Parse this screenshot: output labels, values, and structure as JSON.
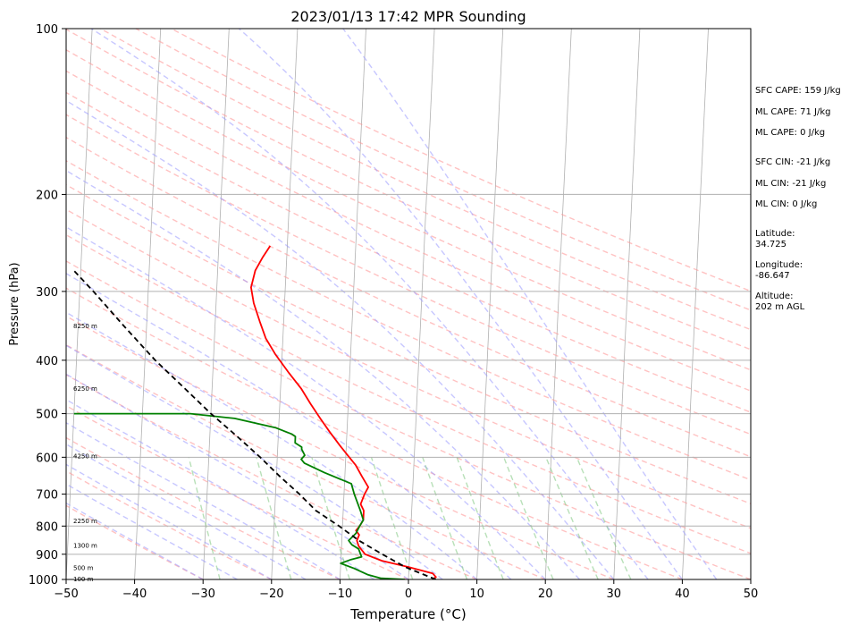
{
  "chart_data": {
    "type": "line",
    "title": "2023/01/13 17:42 MPR Sounding",
    "xlabel": "Temperature (°C)",
    "ylabel": "Pressure (hPa)",
    "xlim": [
      -50,
      50
    ],
    "ylim": [
      1000,
      100
    ],
    "y_scale": "log",
    "grid": "pressure-horizontal",
    "x_ticks": [
      -50,
      -40,
      -30,
      -20,
      -10,
      0,
      10,
      20,
      30,
      40,
      50
    ],
    "y_ticks": [
      100,
      200,
      300,
      400,
      500,
      600,
      700,
      800,
      900,
      1000
    ],
    "series": [
      {
        "color": "#ff0000",
        "points": [
          {
            "t": 3.5,
            "p": 1000
          },
          {
            "t": 4.0,
            "p": 990
          },
          {
            "t": 3.5,
            "p": 975
          },
          {
            "t": 0.0,
            "p": 950
          },
          {
            "t": -4.0,
            "p": 925
          },
          {
            "t": -6.5,
            "p": 900
          },
          {
            "t": -7.5,
            "p": 870
          },
          {
            "t": -7.8,
            "p": 850
          },
          {
            "t": -7.5,
            "p": 830
          },
          {
            "t": -8.0,
            "p": 815
          },
          {
            "t": -7.5,
            "p": 800
          },
          {
            "t": -7.0,
            "p": 780
          },
          {
            "t": -7.0,
            "p": 750
          },
          {
            "t": -7.5,
            "p": 730
          },
          {
            "t": -7.0,
            "p": 700
          },
          {
            "t": -6.5,
            "p": 680
          },
          {
            "t": -7.5,
            "p": 650
          },
          {
            "t": -8.5,
            "p": 620
          },
          {
            "t": -10.0,
            "p": 590
          },
          {
            "t": -11.0,
            "p": 570
          },
          {
            "t": -12.5,
            "p": 540
          },
          {
            "t": -14.0,
            "p": 510
          },
          {
            "t": -15.5,
            "p": 480
          },
          {
            "t": -17.0,
            "p": 450
          },
          {
            "t": -19.0,
            "p": 420
          },
          {
            "t": -21.0,
            "p": 390
          },
          {
            "t": -22.5,
            "p": 365
          },
          {
            "t": -23.5,
            "p": 340
          },
          {
            "t": -24.5,
            "p": 315
          },
          {
            "t": -25.0,
            "p": 295
          },
          {
            "t": -24.5,
            "p": 275
          },
          {
            "t": -23.5,
            "p": 260
          },
          {
            "t": -22.5,
            "p": 248
          }
        ]
      },
      {
        "color": "#008000",
        "points": [
          {
            "t": -0.5,
            "p": 1000
          },
          {
            "t": -4.0,
            "p": 995
          },
          {
            "t": -6.0,
            "p": 980
          },
          {
            "t": -8.0,
            "p": 955
          },
          {
            "t": -10.0,
            "p": 935
          },
          {
            "t": -8.5,
            "p": 920
          },
          {
            "t": -7.0,
            "p": 910
          },
          {
            "t": -7.5,
            "p": 880
          },
          {
            "t": -8.5,
            "p": 865
          },
          {
            "t": -9.0,
            "p": 850
          },
          {
            "t": -8.0,
            "p": 825
          },
          {
            "t": -7.5,
            "p": 800
          },
          {
            "t": -7.0,
            "p": 780
          },
          {
            "t": -7.5,
            "p": 750
          },
          {
            "t": -8.5,
            "p": 700
          },
          {
            "t": -9.0,
            "p": 670
          },
          {
            "t": -13.0,
            "p": 640
          },
          {
            "t": -16.0,
            "p": 615
          },
          {
            "t": -16.5,
            "p": 605
          },
          {
            "t": -16.0,
            "p": 595
          },
          {
            "t": -16.5,
            "p": 580
          },
          {
            "t": -16.5,
            "p": 575
          },
          {
            "t": -17.5,
            "p": 565
          },
          {
            "t": -17.5,
            "p": 550
          },
          {
            "t": -18.0,
            "p": 545
          },
          {
            "t": -20.5,
            "p": 530
          },
          {
            "t": -26.5,
            "p": 510
          },
          {
            "t": -33.0,
            "p": 500
          },
          {
            "t": -50.0,
            "p": 500
          }
        ]
      },
      {
        "color": "#000000",
        "style": "dashed",
        "points": [
          {
            "t": 4.0,
            "p": 1000
          },
          {
            "t": -0.5,
            "p": 950
          },
          {
            "t": -4.0,
            "p": 900
          },
          {
            "t": -7.5,
            "p": 850
          },
          {
            "t": -10.5,
            "p": 800
          },
          {
            "t": -14.0,
            "p": 750
          },
          {
            "t": -16.5,
            "p": 700
          },
          {
            "t": -19.5,
            "p": 650
          },
          {
            "t": -22.5,
            "p": 600
          },
          {
            "t": -26.0,
            "p": 550
          },
          {
            "t": -30.0,
            "p": 500
          },
          {
            "t": -34.0,
            "p": 450
          },
          {
            "t": -38.5,
            "p": 400
          },
          {
            "t": -43.0,
            "p": 350
          },
          {
            "t": -48.0,
            "p": 300
          },
          {
            "t": -51.0,
            "p": 275
          }
        ]
      }
    ],
    "height_labels": [
      {
        "text": "8250 m",
        "p": 347
      },
      {
        "text": "6250 m",
        "p": 451
      },
      {
        "text": "4250 m",
        "p": 598
      },
      {
        "text": "2250 m",
        "p": 784
      },
      {
        "text": "1300 m",
        "p": 869
      },
      {
        "text": "500 m",
        "p": 955
      },
      {
        "text": "100 m",
        "p": 1000
      }
    ],
    "background_lines": {
      "isotherm_color": "#b0b0b0",
      "dry_adiabat_color": "#ff9999",
      "moist_adiabat_color": "#9999ff",
      "mixing_ratio_color": "#88cc88"
    }
  },
  "sidebar": {
    "sfc_cape": "SFC CAPE: 159 J/kg",
    "ml_cape_1": "ML CAPE: 71 J/kg",
    "ml_cape_2": "ML CAPE: 0 J/kg",
    "sfc_cin": "SFC CIN: -21 J/kg",
    "ml_cin_1": "ML CIN: -21 J/kg",
    "ml_cin_2": "ML CIN: 0 J/kg",
    "latitude_label": "Latitude:",
    "latitude_value": "34.725",
    "longitude_label": "Longitude:",
    "longitude_value": "-86.647",
    "altitude_label": "Altitude:",
    "altitude_value": "202 m AGL"
  }
}
